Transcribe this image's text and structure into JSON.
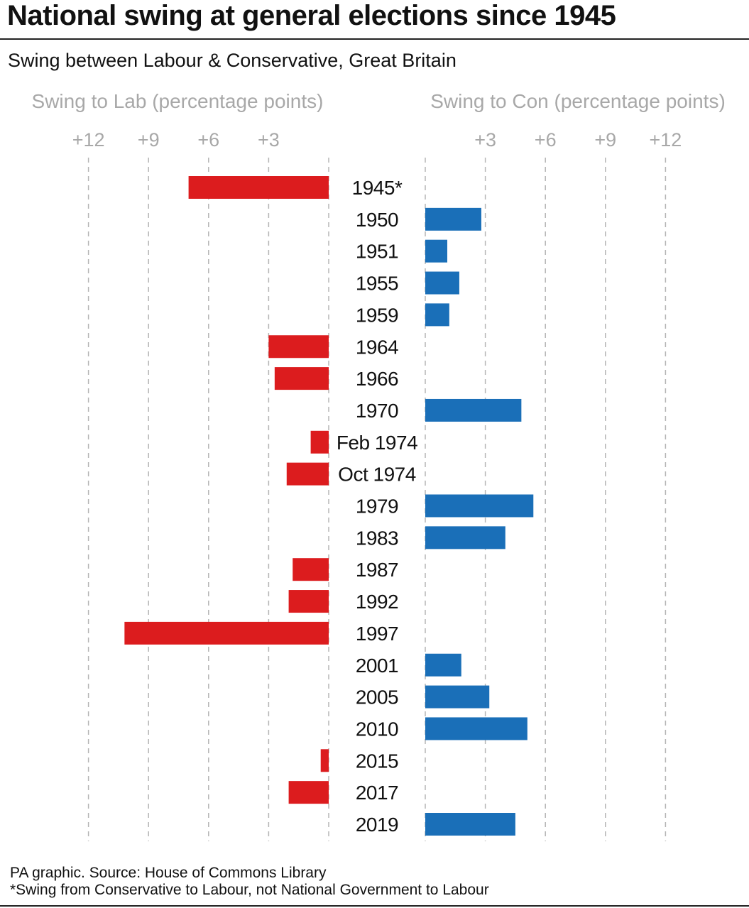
{
  "title": "National swing at general elections since 1945",
  "subtitle": "Swing between Labour & Conservative, Great Britain",
  "footer": {
    "source": "PA graphic. Source: House of Commons Library",
    "note": "*Swing from Conservative to Labour, not National Government to Labour"
  },
  "chart_data": {
    "type": "bar",
    "orientation": "horizontal-diverging",
    "left_axis_label": "Swing to Lab (percentage points)",
    "right_axis_label": "Swing to Con (percentage points)",
    "tick_labels": [
      "+3",
      "+6",
      "+9",
      "+12"
    ],
    "ticks": [
      3,
      6,
      9,
      12
    ],
    "xlim": [
      0,
      12
    ],
    "grid": true,
    "colors": {
      "lab": "#dc1c1e",
      "con": "#1a6fb8"
    },
    "categories": [
      "1945*",
      "1950",
      "1951",
      "1955",
      "1959",
      "1964",
      "1966",
      "1970",
      "Feb 1974",
      "Oct 1974",
      "1979",
      "1983",
      "1987",
      "1992",
      "1997",
      "2001",
      "2005",
      "2010",
      "2015",
      "2017",
      "2019"
    ],
    "series": [
      {
        "name": "Swing to Lab",
        "values": [
          7.0,
          null,
          null,
          null,
          null,
          3.0,
          2.7,
          null,
          0.9,
          2.1,
          null,
          null,
          1.8,
          2.0,
          10.2,
          null,
          null,
          null,
          0.4,
          2.0,
          null
        ]
      },
      {
        "name": "Swing to Con",
        "values": [
          null,
          2.8,
          1.1,
          1.7,
          1.2,
          null,
          null,
          4.8,
          null,
          null,
          5.4,
          4.0,
          null,
          null,
          null,
          1.8,
          3.2,
          5.1,
          null,
          null,
          4.5
        ]
      }
    ]
  }
}
